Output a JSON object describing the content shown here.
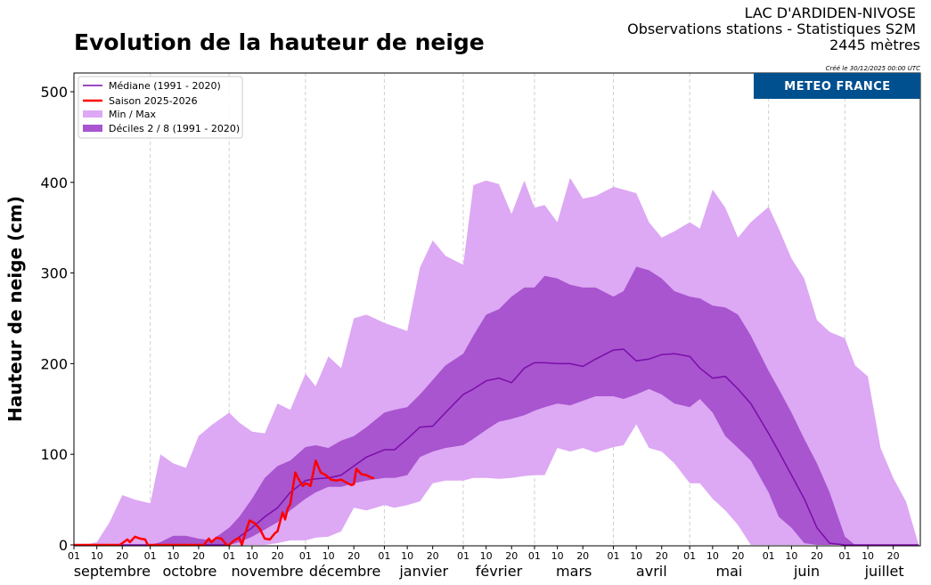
{
  "header": {
    "title": "Evolution de la hauteur de neige",
    "station": "LAC D'ARDIDEN-NIVOSE",
    "subtitle": "Observations stations - Statistiques S2M",
    "altitude": "2445 mètres",
    "created": "Créé le 30/12/2025 00:00 UTC",
    "brand": "METEO FRANCE",
    "brand_color": "#00508F"
  },
  "chart_data": {
    "type": "area",
    "title": "Evolution de la hauteur de neige",
    "ylabel": "Hauteur de neige (cm)",
    "xlabel": "",
    "ylim": [
      0,
      515
    ],
    "yticks": [
      0,
      100,
      200,
      300,
      400,
      500
    ],
    "grid": "vertical dashed lines at month starts",
    "legend_position": "top-left",
    "months": [
      "septembre",
      "octobre",
      "novembre",
      "décembre",
      "janvier",
      "février",
      "mars",
      "avril",
      "mai",
      "juin",
      "juillet"
    ],
    "day_ticks": [
      "01",
      "10",
      "20"
    ],
    "legend": [
      {
        "label": "Médiane (1991 - 2020)",
        "color": "#7B0DAA",
        "kind": "line"
      },
      {
        "label": "Saison 2025-2026",
        "color": "#FF0000",
        "kind": "line"
      },
      {
        "label": "Min / Max",
        "color": "#DDA8F4",
        "kind": "fill"
      },
      {
        "label": "Déciles 2 / 8  (1991 - 2020)",
        "color": "#A855CF",
        "kind": "fill"
      }
    ],
    "x": [
      "09-01",
      "09-05",
      "09-10",
      "09-15",
      "09-20",
      "09-25",
      "10-01",
      "10-05",
      "10-10",
      "10-15",
      "10-20",
      "10-25",
      "11-01",
      "11-05",
      "11-10",
      "11-15",
      "11-20",
      "11-25",
      "12-01",
      "12-05",
      "12-10",
      "12-15",
      "12-20",
      "12-25",
      "01-01",
      "01-05",
      "01-10",
      "01-15",
      "01-20",
      "01-25",
      "02-01",
      "02-05",
      "02-10",
      "02-15",
      "02-20",
      "02-25",
      "03-01",
      "03-05",
      "03-10",
      "03-15",
      "03-20",
      "03-25",
      "04-01",
      "04-05",
      "04-10",
      "04-15",
      "04-20",
      "04-25",
      "05-01",
      "05-05",
      "05-10",
      "05-15",
      "05-20",
      "05-25",
      "06-01",
      "06-05",
      "06-10",
      "06-15",
      "06-20",
      "06-25",
      "07-01",
      "07-05",
      "07-10",
      "07-15",
      "07-20",
      "07-25",
      "07-30"
    ],
    "series": [
      {
        "name": "Max",
        "values": [
          0,
          0,
          3,
          25,
          55,
          50,
          46,
          100,
          90,
          85,
          120,
          132,
          146,
          135,
          125,
          123,
          156,
          149,
          189,
          175,
          208,
          195,
          250,
          254,
          245,
          241,
          236,
          306,
          336,
          319,
          309,
          397,
          402,
          398,
          365,
          402,
          372,
          375,
          356,
          405,
          382,
          385,
          395,
          392,
          388,
          356,
          339,
          346,
          356,
          349,
          392,
          372,
          339,
          356,
          373,
          349,
          316,
          294,
          248,
          235,
          228,
          198,
          186,
          107,
          74,
          48,
          0
        ]
      },
      {
        "name": "Décile 8",
        "values": [
          0,
          0,
          0,
          0,
          0,
          0,
          0,
          3,
          10,
          10,
          7,
          5,
          19,
          31,
          51,
          74,
          87,
          93,
          108,
          110,
          107,
          115,
          120,
          130,
          146,
          149,
          152,
          166,
          182,
          198,
          211,
          231,
          254,
          260,
          274,
          284,
          284,
          297,
          294,
          287,
          284,
          284,
          274,
          280,
          307,
          303,
          294,
          280,
          274,
          272,
          264,
          262,
          254,
          231,
          192,
          172,
          146,
          117,
          90,
          58,
          9,
          0,
          0,
          0,
          0,
          0,
          0
        ]
      },
      {
        "name": "Médiane (1991 - 2020)",
        "values": [
          0,
          0,
          0,
          0,
          0,
          0,
          0,
          0,
          0,
          0,
          0,
          0,
          0,
          9,
          19,
          31,
          41,
          58,
          71,
          73,
          74,
          77,
          87,
          97,
          105,
          105,
          117,
          130,
          131,
          146,
          166,
          172,
          181,
          184,
          179,
          195,
          201,
          201,
          200,
          200,
          197,
          205,
          215,
          216,
          203,
          205,
          210,
          211,
          208,
          195,
          184,
          186,
          172,
          156,
          123,
          103,
          77,
          51,
          19,
          2,
          0,
          0,
          0,
          0,
          0,
          0,
          0
        ]
      },
      {
        "name": "Décile 2",
        "values": [
          0,
          0,
          0,
          0,
          0,
          0,
          0,
          0,
          0,
          0,
          0,
          0,
          0,
          3,
          9,
          17,
          25,
          38,
          51,
          58,
          64,
          64,
          68,
          71,
          74,
          74,
          77,
          97,
          103,
          107,
          110,
          117,
          127,
          136,
          139,
          143,
          148,
          152,
          156,
          154,
          159,
          164,
          164,
          161,
          166,
          172,
          166,
          156,
          152,
          161,
          146,
          120,
          107,
          93,
          58,
          31,
          19,
          2,
          0,
          0,
          0,
          0,
          0,
          0,
          0,
          0,
          0
        ]
      },
      {
        "name": "Min",
        "values": [
          0,
          0,
          0,
          0,
          0,
          0,
          0,
          0,
          0,
          0,
          0,
          0,
          0,
          0,
          0,
          0,
          2,
          5,
          5,
          8,
          9,
          15,
          41,
          38,
          44,
          41,
          44,
          48,
          68,
          71,
          71,
          74,
          74,
          73,
          74,
          76,
          77,
          77,
          107,
          103,
          107,
          102,
          108,
          110,
          133,
          107,
          103,
          90,
          68,
          68,
          51,
          38,
          22,
          0,
          0,
          0,
          0,
          0,
          0,
          0,
          0,
          0,
          0,
          0,
          0,
          0,
          0
        ]
      }
    ],
    "season": {
      "name": "Saison 2025-2026",
      "x": [
        "09-01",
        "09-19",
        "09-20",
        "09-22",
        "09-23",
        "09-25",
        "09-27",
        "09-29",
        "09-30",
        "10-22",
        "10-24",
        "10-25",
        "10-27",
        "10-29",
        "10-31",
        "11-01",
        "11-03",
        "11-05",
        "11-06",
        "11-07",
        "11-09",
        "11-11",
        "11-13",
        "11-15",
        "11-17",
        "11-19",
        "11-20",
        "11-22",
        "11-23",
        "11-24",
        "11-25",
        "11-27",
        "11-28",
        "11-30",
        "12-01",
        "12-02",
        "12-03",
        "12-05",
        "12-07",
        "12-09",
        "12-11",
        "12-13",
        "12-15",
        "12-17",
        "12-19",
        "12-20",
        "12-21",
        "12-23",
        "12-25",
        "12-27",
        "12-28"
      ],
      "values": [
        0,
        0,
        2,
        6,
        3,
        9,
        7,
        6,
        0,
        0,
        7,
        3,
        8,
        7,
        0,
        0,
        5,
        8,
        0,
        10,
        27,
        24,
        18,
        7,
        6,
        13,
        15,
        36,
        28,
        40,
        45,
        80,
        74,
        65,
        68,
        67,
        65,
        93,
        80,
        77,
        72,
        71,
        72,
        69,
        66,
        67,
        84,
        78,
        77,
        74,
        74
      ]
    }
  }
}
